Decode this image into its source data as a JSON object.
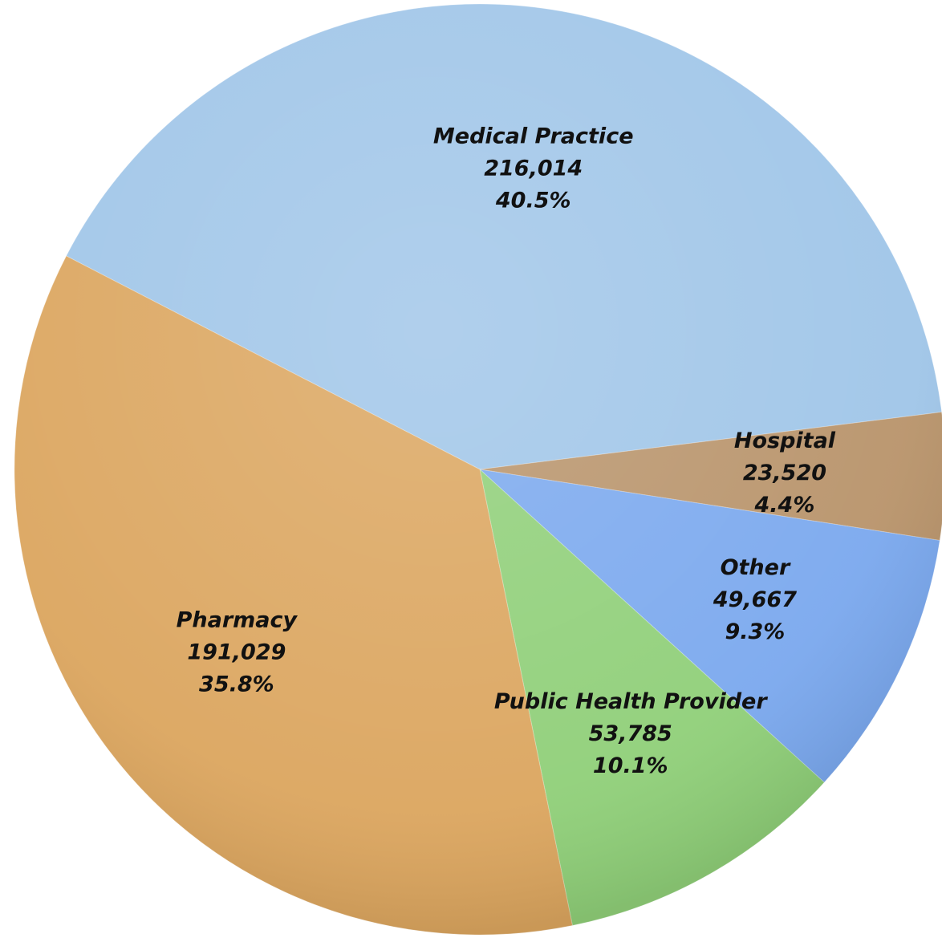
{
  "chart_data": {
    "type": "pie",
    "categories": [
      "Medical Practice",
      "Hospital",
      "Other",
      "Public Health Provider",
      "Pharmacy"
    ],
    "values": [
      216014,
      23520,
      49667,
      53785,
      191029
    ],
    "value_labels": [
      "216,014",
      "23,520",
      "49,667",
      "53,785",
      "191,029"
    ],
    "percents": [
      40.5,
      4.4,
      9.3,
      10.1,
      35.8
    ],
    "percent_labels": [
      "40.5%",
      "4.4%",
      "9.3%",
      "10.1%",
      "35.8%"
    ],
    "colors": [
      "#9fc5e8",
      "#b8936a",
      "#7aa8ee",
      "#8fcf78",
      "#dba55e"
    ]
  }
}
